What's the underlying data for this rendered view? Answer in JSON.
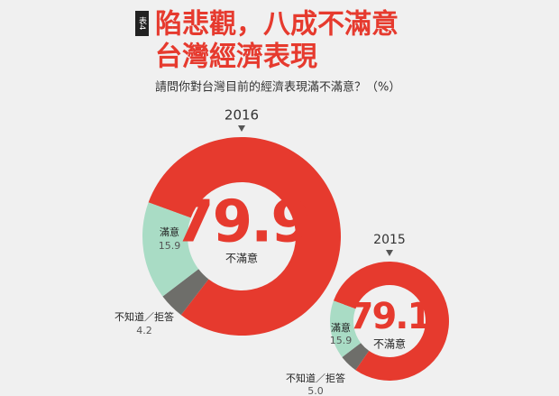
{
  "header": {
    "tag": "表4",
    "title_lines": [
      "陷悲觀，八成不滿意",
      "台灣經濟表現"
    ],
    "subtitle": "請問你對台灣目前的經濟表現滿不滿意？（%）"
  },
  "chart_data": [
    {
      "type": "pie",
      "title": "2016",
      "categories": [
        "不滿意",
        "滿意",
        "不知道／拒答"
      ],
      "values": [
        79.9,
        15.9,
        4.2
      ],
      "colors": [
        "#e63a2e",
        "#a9dcc5",
        "#6e6e6a"
      ]
    },
    {
      "type": "pie",
      "title": "2015",
      "categories": [
        "不滿意",
        "滿意",
        "不知道／拒答"
      ],
      "values": [
        79.1,
        15.9,
        5
      ],
      "value_labels": [
        "79.1",
        "15.9",
        "5.0"
      ],
      "colors": [
        "#e63a2e",
        "#a9dcc5",
        "#6e6e6a"
      ]
    }
  ]
}
